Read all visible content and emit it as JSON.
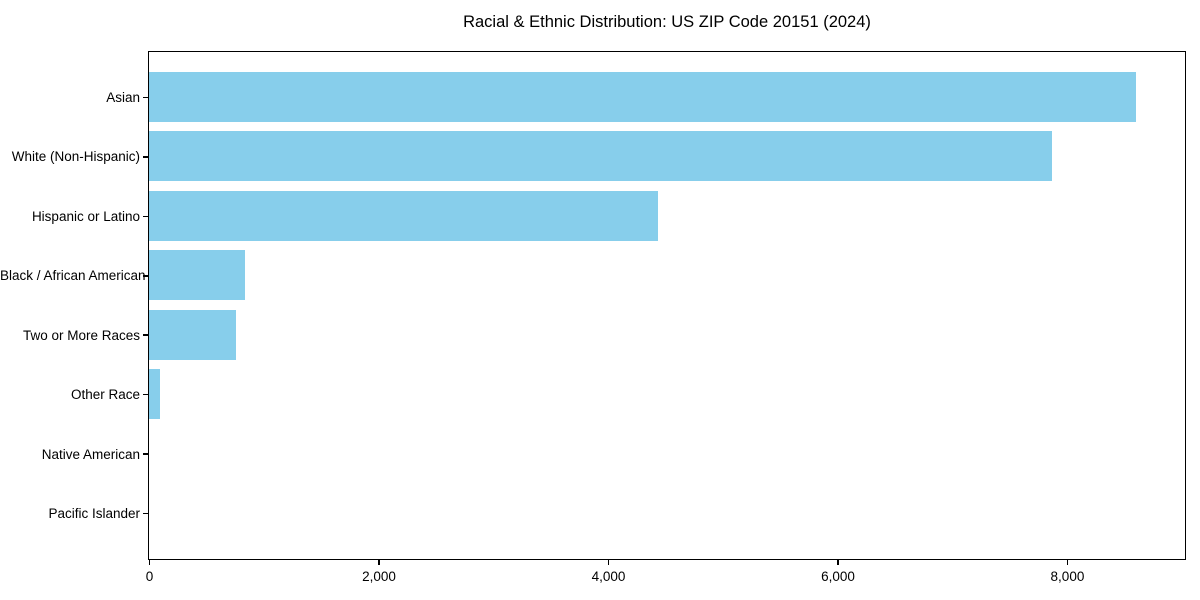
{
  "title": "Racial & Ethnic Distribution: US ZIP Code 20151 (2024)",
  "chart_data": {
    "type": "bar",
    "orientation": "horizontal",
    "title": "Racial & Ethnic Distribution: US ZIP Code 20151 (2024)",
    "xlabel": "",
    "ylabel": "",
    "categories": [
      "Asian",
      "White (Non-Hispanic)",
      "Hispanic or Latino",
      "Black / African American",
      "Two or More Races",
      "Other Race",
      "Native American",
      "Pacific Islander"
    ],
    "values": [
      8600,
      7870,
      4440,
      835,
      760,
      100,
      0,
      0
    ],
    "xlim": [
      0,
      9020
    ],
    "x_ticks": [
      0,
      2000,
      4000,
      6000,
      8000
    ],
    "x_tick_labels": [
      "0",
      "2,000",
      "4,000",
      "6,000",
      "8,000"
    ],
    "grid": false,
    "legend": false,
    "bar_color": "#87CEEB"
  },
  "colors": {
    "bar": "#87CEEB",
    "axis": "#000000",
    "text": "#000000",
    "background": "#ffffff"
  }
}
